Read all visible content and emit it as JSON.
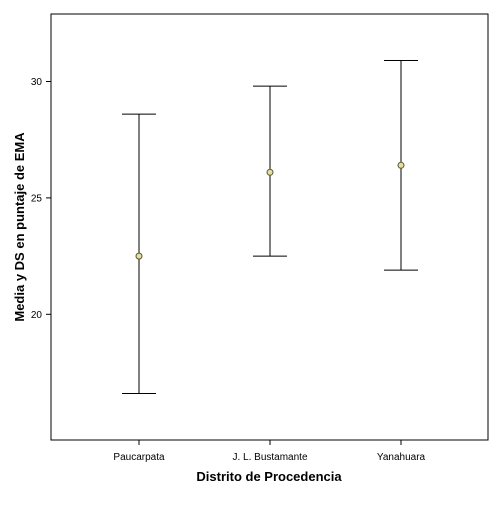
{
  "chart_data": {
    "type": "errorbar",
    "xlabel": "Distrito de Procedencia",
    "ylabel": "Media y DS en puntaje de EMA",
    "ylim": [
      14.6,
      32.9
    ],
    "yticks": [
      20,
      25,
      30
    ],
    "grid": false,
    "legend": "none",
    "categories": [
      "Paucarpata",
      "J. L. Bustamante",
      "Yanahuara"
    ],
    "points": [
      {
        "category": "Paucarpata",
        "mean": 22.5,
        "upper": 28.6,
        "lower": 16.6
      },
      {
        "category": "J. L. Bustamante",
        "mean": 26.1,
        "upper": 29.8,
        "lower": 22.5
      },
      {
        "category": "Yanahuara",
        "mean": 26.4,
        "upper": 30.9,
        "lower": 21.9
      }
    ],
    "colors": {
      "marker_fill": "#e6e0a0",
      "marker_stroke": "#555533",
      "line": "#000000",
      "axis": "#000000"
    }
  }
}
